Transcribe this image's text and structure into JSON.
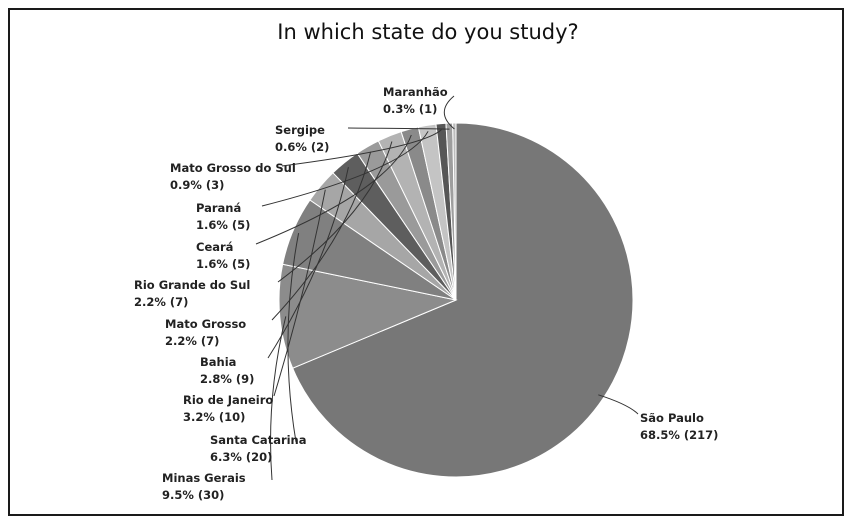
{
  "chart_data": {
    "type": "pie",
    "title": "In which state do you study?",
    "slices": [
      {
        "label": "São Paulo",
        "percent": 68.5,
        "count": 217,
        "value_text": "68.5% (217)",
        "color": "#777777"
      },
      {
        "label": "Minas Gerais",
        "percent": 9.5,
        "count": 30,
        "value_text": "9.5% (30)",
        "color": "#8c8c8c"
      },
      {
        "label": "Santa Catarina",
        "percent": 6.3,
        "count": 20,
        "value_text": "6.3% (20)",
        "color": "#808080"
      },
      {
        "label": "Rio de Janeiro",
        "percent": 3.2,
        "count": 10,
        "value_text": "3.2% (10)",
        "color": "#a6a6a6"
      },
      {
        "label": "Bahia",
        "percent": 2.8,
        "count": 9,
        "value_text": "2.8% (9)",
        "color": "#5e5e5e"
      },
      {
        "label": "Mato Grosso",
        "percent": 2.2,
        "count": 7,
        "value_text": "2.2% (7)",
        "color": "#9a9a9a"
      },
      {
        "label": "Rio Grande do Sul",
        "percent": 2.2,
        "count": 7,
        "value_text": "2.2% (7)",
        "color": "#b3b3b3"
      },
      {
        "label": "Ceará",
        "percent": 1.6,
        "count": 5,
        "value_text": "1.6% (5)",
        "color": "#8a8a8a"
      },
      {
        "label": "Paraná",
        "percent": 1.6,
        "count": 5,
        "value_text": "1.6% (5)",
        "color": "#c4c4c4"
      },
      {
        "label": "Mato Grosso do Sul",
        "percent": 0.9,
        "count": 3,
        "value_text": "0.9% (3)",
        "color": "#565656"
      },
      {
        "label": "Sergipe",
        "percent": 0.6,
        "count": 2,
        "value_text": "0.6% (2)",
        "color": "#9e9e9e"
      },
      {
        "label": "Maranhão",
        "percent": 0.3,
        "count": 1,
        "value_text": "0.3% (1)",
        "color": "#bdbdbd"
      }
    ]
  }
}
